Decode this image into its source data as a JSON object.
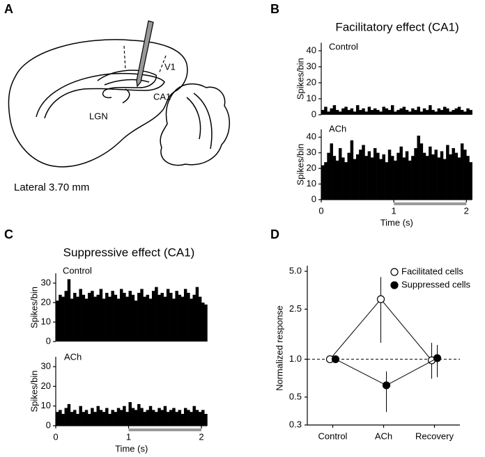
{
  "panel_labels": [
    "A",
    "B",
    "C",
    "D"
  ],
  "diagram": {
    "labels": [
      "V1",
      "CA1",
      "LGN"
    ],
    "caption": "Lateral 3.70 mm"
  },
  "chart_data": [
    {
      "type": "histogram",
      "title": "Facilitatory effect (CA1)",
      "label": "Control",
      "ylabel": "Spikes/bin",
      "color": "#000000",
      "bins": [
        0,
        0.04,
        0.08,
        0.12,
        0.16,
        0.2,
        0.24,
        0.28,
        0.32,
        0.36,
        0.4,
        0.44,
        0.48,
        0.52,
        0.56,
        0.6,
        0.64,
        0.68,
        0.72,
        0.76,
        0.8,
        0.84,
        0.88,
        0.92,
        0.96,
        1,
        1.04,
        1.08,
        1.12,
        1.16,
        1.2,
        1.24,
        1.28,
        1.32,
        1.36,
        1.4,
        1.44,
        1.48,
        1.52,
        1.56,
        1.6,
        1.64,
        1.68,
        1.72,
        1.76,
        1.8,
        1.84,
        1.88,
        1.92,
        1.96,
        2,
        2.04,
        2.08
      ],
      "values": [
        3,
        5,
        2,
        4,
        6,
        3,
        2,
        4,
        5,
        3,
        4,
        2,
        6,
        3,
        4,
        2,
        5,
        3,
        4,
        3,
        2,
        5,
        4,
        3,
        6,
        2,
        3,
        4,
        5,
        3,
        2,
        4,
        3,
        5,
        2,
        4,
        3,
        6,
        3,
        2,
        4,
        3,
        5,
        4,
        2,
        3,
        4,
        5,
        3,
        2,
        4,
        3
      ],
      "xlim": [
        0,
        2.08
      ],
      "ylim": [
        0,
        45
      ],
      "yticks": [
        0,
        10,
        20,
        30,
        40
      ]
    },
    {
      "type": "histogram",
      "label": "ACh",
      "ylabel": "Spikes/bin",
      "xlabel": "Time (s)",
      "color": "#000000",
      "bins": [
        0,
        0.04,
        0.08,
        0.12,
        0.16,
        0.2,
        0.24,
        0.28,
        0.32,
        0.36,
        0.4,
        0.44,
        0.48,
        0.52,
        0.56,
        0.6,
        0.64,
        0.68,
        0.72,
        0.76,
        0.8,
        0.84,
        0.88,
        0.92,
        0.96,
        1,
        1.04,
        1.08,
        1.12,
        1.16,
        1.2,
        1.24,
        1.28,
        1.32,
        1.36,
        1.4,
        1.44,
        1.48,
        1.52,
        1.56,
        1.6,
        1.64,
        1.68,
        1.72,
        1.76,
        1.8,
        1.84,
        1.88,
        1.92,
        1.96,
        2,
        2.04,
        2.08
      ],
      "values": [
        22,
        24,
        30,
        36,
        28,
        25,
        33,
        27,
        24,
        30,
        38,
        26,
        29,
        32,
        35,
        28,
        31,
        27,
        33,
        30,
        26,
        29,
        24,
        32,
        28,
        25,
        30,
        34,
        27,
        31,
        25,
        28,
        33,
        41,
        36,
        30,
        28,
        34,
        29,
        32,
        27,
        31,
        26,
        35,
        29,
        33,
        30,
        27,
        36,
        32,
        28,
        24
      ],
      "xlim": [
        0,
        2.08
      ],
      "ylim": [
        0,
        45
      ],
      "yticks": [
        0,
        10,
        20,
        30,
        40
      ],
      "xticks": [
        0,
        1,
        2
      ],
      "stimulus": [
        1,
        2
      ],
      "stimulus_color": "#999999"
    },
    {
      "type": "histogram",
      "title": "Suppressive effect (CA1)",
      "label": "Control",
      "ylabel": "Spikes/bin",
      "color": "#000000",
      "bins": [
        0,
        0.04,
        0.08,
        0.12,
        0.16,
        0.2,
        0.24,
        0.28,
        0.32,
        0.36,
        0.4,
        0.44,
        0.48,
        0.52,
        0.56,
        0.6,
        0.64,
        0.68,
        0.72,
        0.76,
        0.8,
        0.84,
        0.88,
        0.92,
        0.96,
        1,
        1.04,
        1.08,
        1.12,
        1.16,
        1.2,
        1.24,
        1.28,
        1.32,
        1.36,
        1.4,
        1.44,
        1.48,
        1.52,
        1.56,
        1.6,
        1.64,
        1.68,
        1.72,
        1.76,
        1.8,
        1.84,
        1.88,
        1.92,
        1.96,
        2,
        2.04,
        2.08
      ],
      "values": [
        21,
        24,
        23,
        26,
        32,
        22,
        25,
        23,
        27,
        24,
        22,
        25,
        26,
        23,
        24,
        27,
        22,
        25,
        23,
        26,
        24,
        22,
        27,
        25,
        23,
        26,
        24,
        21,
        25,
        27,
        23,
        24,
        22,
        26,
        28,
        24,
        25,
        23,
        27,
        25,
        22,
        26,
        24,
        23,
        27,
        25,
        22,
        24,
        28,
        23,
        20,
        19
      ],
      "xlim": [
        0,
        2.08
      ],
      "ylim": [
        0,
        35
      ],
      "yticks": [
        0,
        10,
        20,
        30
      ]
    },
    {
      "type": "histogram",
      "label": "ACh",
      "ylabel": "Spikes/bin",
      "xlabel": "Time (s)",
      "color": "#000000",
      "bins": [
        0,
        0.04,
        0.08,
        0.12,
        0.16,
        0.2,
        0.24,
        0.28,
        0.32,
        0.36,
        0.4,
        0.44,
        0.48,
        0.52,
        0.56,
        0.6,
        0.64,
        0.68,
        0.72,
        0.76,
        0.8,
        0.84,
        0.88,
        0.92,
        0.96,
        1,
        1.04,
        1.08,
        1.12,
        1.16,
        1.2,
        1.24,
        1.28,
        1.32,
        1.36,
        1.4,
        1.44,
        1.48,
        1.52,
        1.56,
        1.6,
        1.64,
        1.68,
        1.72,
        1.76,
        1.8,
        1.84,
        1.88,
        1.92,
        1.96,
        2,
        2.04,
        2.08
      ],
      "values": [
        7,
        8,
        6,
        9,
        11,
        7,
        8,
        6,
        10,
        7,
        8,
        6,
        9,
        7,
        10,
        8,
        7,
        9,
        6,
        8,
        7,
        9,
        8,
        10,
        7,
        12,
        9,
        8,
        11,
        9,
        7,
        8,
        10,
        8,
        7,
        9,
        8,
        10,
        7,
        8,
        9,
        7,
        8,
        6,
        9,
        8,
        7,
        10,
        8,
        7,
        8,
        6
      ],
      "xlim": [
        0,
        2.08
      ],
      "ylim": [
        0,
        35
      ],
      "yticks": [
        0,
        10,
        20,
        30
      ],
      "xticks": [
        0,
        1,
        2
      ],
      "stimulus": [
        1,
        2
      ],
      "stimulus_color": "#999999"
    },
    {
      "type": "line",
      "ylabel": "Normalized response",
      "categories": [
        "Control",
        "ACh",
        "Recovery"
      ],
      "log_scale": true,
      "ylim": [
        0.3,
        5
      ],
      "yticks": [
        0.3,
        0.5,
        {
          "value": 1,
          "label": "1.0"
        },
        2.5,
        {
          "value": 5,
          "label": "5.0"
        }
      ],
      "reference_line": 1,
      "legend": "top-right",
      "series": [
        {
          "name": "Facilitated cells",
          "marker": "open",
          "color": "#000000",
          "values": [
            1,
            3.0,
            0.98
          ],
          "lower": [
            null,
            1.35,
            0.7
          ],
          "upper": [
            null,
            4.5,
            1.35
          ]
        },
        {
          "name": "Suppressed cells",
          "marker": "filled",
          "color": "#000000",
          "values": [
            1,
            0.62,
            1.02
          ],
          "lower": [
            null,
            0.38,
            0.72
          ],
          "upper": [
            null,
            0.8,
            1.3
          ]
        }
      ]
    }
  ]
}
